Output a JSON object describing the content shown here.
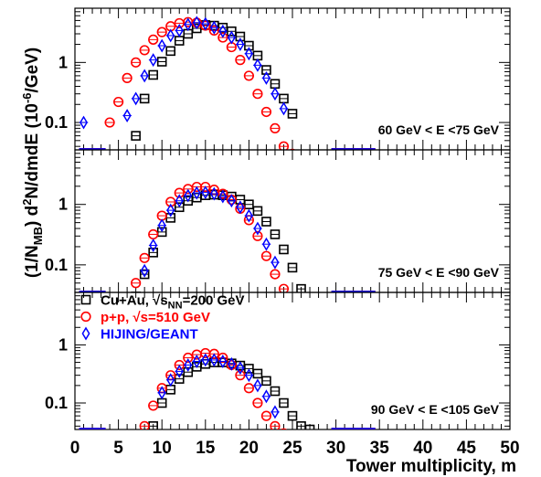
{
  "chart_data": {
    "type": "scatter",
    "xlabel": "Tower multiplicity, m",
    "ylabel_parts": {
      "a": "(1/N",
      "b": "MB",
      "c": ") d",
      "d": "2",
      "e": "N/dmdE (10",
      "f": "-6",
      "g": "/GeV)"
    },
    "xlim": [
      0,
      50
    ],
    "x_ticks": [
      "0",
      "5",
      "10",
      "15",
      "20",
      "25",
      "30",
      "35",
      "40",
      "45",
      "50"
    ],
    "y_scale": "log",
    "y_ticks": [
      "1",
      "0.1"
    ],
    "y_tick_values": [
      1,
      0.1
    ],
    "legend": {
      "placement": "top-left of bottom panel",
      "entries": [
        {
          "key": "cuau",
          "main": "Cu+Au, √s",
          "sub": "NN",
          "tail": "=200 GeV",
          "color": "#000000",
          "marker": "square"
        },
        {
          "key": "pp",
          "main": "p+p, √s=510 GeV",
          "sub": "",
          "tail": "",
          "color": "#ff0000",
          "marker": "circle"
        },
        {
          "key": "hijing",
          "main": "HIJING/GEANT",
          "sub": "",
          "tail": "",
          "color": "#0000ff",
          "marker": "diamond"
        }
      ]
    },
    "panels": [
      {
        "label": "60 GeV < E <75 GeV",
        "ylim": [
          0.035,
          8
        ],
        "series": {
          "cuau": {
            "x": [
              7,
              8,
              9,
              10,
              11,
              12,
              13,
              14,
              15,
              16,
              17,
              18,
              19,
              20,
              21,
              22,
              23,
              24,
              25
            ],
            "y": [
              0.06,
              0.25,
              0.62,
              1.03,
              1.55,
              2.3,
              3.0,
              3.7,
              4.2,
              4.1,
              3.8,
              3.3,
              2.7,
              1.9,
              1.3,
              0.75,
              0.44,
              0.25,
              0.14
            ]
          },
          "pp": {
            "x": [
              4,
              5,
              6,
              7,
              8,
              9,
              10,
              11,
              12,
              13,
              14,
              15,
              16,
              17,
              18,
              19,
              20,
              21,
              22,
              23,
              24,
              25
            ],
            "y": [
              0.1,
              0.22,
              0.55,
              1.0,
              1.6,
              2.4,
              3.2,
              4.0,
              4.5,
              4.7,
              4.6,
              4.1,
              3.4,
              2.6,
              1.8,
              1.1,
              0.6,
              0.3,
              0.15,
              0.08,
              0.04,
              0.03
            ]
          },
          "hijing": {
            "x": [
              1,
              6,
              7,
              8,
              9,
              10,
              11,
              12,
              13,
              14,
              15,
              16,
              17,
              18,
              19,
              20,
              21,
              22,
              23,
              24
            ],
            "y": [
              0.1,
              0.13,
              0.25,
              0.6,
              1.1,
              1.9,
              2.8,
              3.4,
              4.3,
              4.6,
              4.4,
              3.8,
              3.3,
              2.6,
              2.0,
              1.4,
              0.9,
              0.55,
              0.3,
              0.17
            ]
          }
        }
      },
      {
        "label": "75 GeV < E <90 GeV",
        "ylim": [
          0.035,
          8
        ],
        "series": {
          "cuau": {
            "x": [
              7,
              8,
              9,
              10,
              11,
              12,
              13,
              14,
              15,
              16,
              17,
              18,
              19,
              20,
              21,
              22,
              23,
              24,
              25,
              26
            ],
            "y": [
              0.03,
              0.07,
              0.16,
              0.35,
              0.6,
              0.9,
              1.15,
              1.3,
              1.42,
              1.45,
              1.42,
              1.35,
              1.2,
              1.0,
              0.78,
              0.52,
              0.32,
              0.18,
              0.09,
              0.04
            ]
          },
          "pp": {
            "x": [
              7,
              8,
              9,
              10,
              11,
              12,
              13,
              14,
              15,
              16,
              17,
              18,
              19,
              20,
              21,
              22,
              23,
              24
            ],
            "y": [
              0.05,
              0.13,
              0.32,
              0.65,
              1.1,
              1.55,
              1.8,
              1.95,
              1.95,
              1.75,
              1.5,
              1.2,
              0.85,
              0.55,
              0.3,
              0.14,
              0.07,
              0.04
            ]
          },
          "hijing": {
            "x": [
              8,
              9,
              10,
              11,
              12,
              13,
              14,
              15,
              16,
              17,
              18,
              19,
              20,
              21,
              22,
              23
            ],
            "y": [
              0.08,
              0.21,
              0.45,
              0.8,
              1.15,
              1.4,
              1.55,
              1.58,
              1.5,
              1.35,
              1.15,
              0.9,
              0.65,
              0.4,
              0.22,
              0.11
            ]
          }
        }
      },
      {
        "label": "90 GeV < E <105 GeV",
        "ylim": [
          0.035,
          8
        ],
        "series": {
          "cuau": {
            "x": [
              9,
              10,
              11,
              12,
              13,
              14,
              15,
              16,
              17,
              18,
              19,
              20,
              21,
              22,
              23,
              24,
              25,
              26,
              27
            ],
            "y": [
              0.04,
              0.1,
              0.17,
              0.26,
              0.34,
              0.42,
              0.47,
              0.5,
              0.5,
              0.48,
              0.44,
              0.39,
              0.32,
              0.24,
              0.16,
              0.1,
              0.06,
              0.04,
              0.035
            ]
          },
          "pp": {
            "x": [
              8,
              9,
              10,
              11,
              12,
              13,
              14,
              15,
              16,
              17,
              18,
              19,
              20,
              21,
              22,
              23,
              24
            ],
            "y": [
              0.04,
              0.09,
              0.18,
              0.3,
              0.45,
              0.6,
              0.68,
              0.72,
              0.7,
              0.6,
              0.45,
              0.3,
              0.18,
              0.1,
              0.06,
              0.04,
              0.03
            ]
          },
          "hijing": {
            "x": [
              10,
              11,
              12,
              13,
              14,
              15,
              16,
              17,
              18,
              19,
              20,
              21,
              22,
              23
            ],
            "y": [
              0.15,
              0.25,
              0.35,
              0.45,
              0.52,
              0.55,
              0.55,
              0.52,
              0.47,
              0.4,
              0.3,
              0.2,
              0.13,
              0.07
            ]
          }
        }
      }
    ]
  }
}
